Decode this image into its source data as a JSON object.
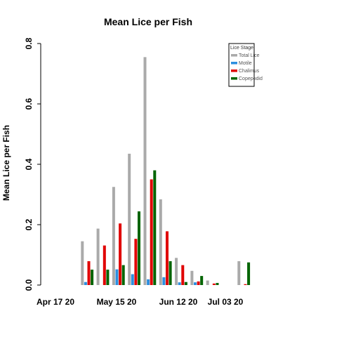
{
  "chart_data": {
    "type": "bar",
    "title": "Mean Lice per Fish",
    "ylabel": "Mean Lice per Fish",
    "xlabel": "",
    "ylim": [
      0,
      0.8
    ],
    "yticks": [
      0.0,
      0.2,
      0.4,
      0.6,
      0.8
    ],
    "ytick_labels": [
      "0.0",
      "0.2",
      "0.4",
      "0.6",
      "0.8"
    ],
    "x_tick_labels": [
      "Apr 17 20",
      "May 15 20",
      "Jun 12 20",
      "Jul 03 20"
    ],
    "groups_per_tick": [
      0,
      4,
      7,
      9
    ],
    "group_count": 12,
    "legend": {
      "title": "Lice Stage",
      "position": "top-right"
    },
    "series": [
      {
        "name": "Total Lice",
        "color": "#aaaaaa",
        "values": [
          0,
          0.145,
          0.187,
          0.325,
          0.435,
          0.755,
          0.284,
          0.09,
          0.047,
          0.015,
          0,
          0.079
        ]
      },
      {
        "name": "Motile",
        "color": "#2d8fdf",
        "values": [
          0,
          0.01,
          0,
          0.052,
          0.036,
          0.019,
          0.026,
          0.009,
          0.009,
          0,
          0,
          0
        ]
      },
      {
        "name": "Chalimus",
        "color": "#e00000",
        "values": [
          0,
          0.079,
          0.131,
          0.204,
          0.153,
          0.35,
          0.178,
          0.066,
          0.012,
          0.005,
          0,
          0.003
        ]
      },
      {
        "name": "Copepodid",
        "color": "#006400",
        "values": [
          0,
          0.051,
          0.051,
          0.066,
          0.244,
          0.38,
          0.079,
          0.01,
          0.03,
          0.007,
          0,
          0.075
        ]
      }
    ]
  }
}
